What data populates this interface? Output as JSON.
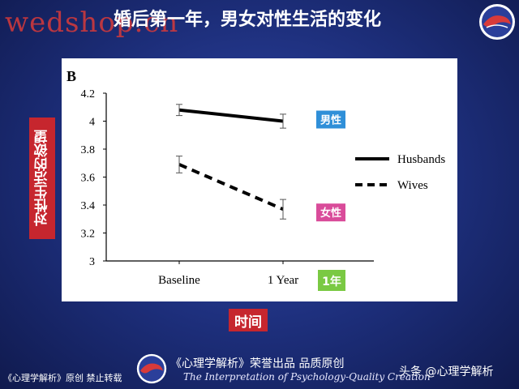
{
  "watermark": "wedshop.cn",
  "title": "婚后第一年，男女对性生活的变化",
  "y_axis_label": "对性生活的欲望",
  "x_axis_label": "时间",
  "footer": {
    "left": "《心理学解析》原创 禁止转载",
    "main": "《心理学解析》荣誉出品 品质原创",
    "sub": "The Interpretation of Psychology-Quality Creation",
    "right": "头条 @心理学解析"
  },
  "colors": {
    "background": "#1b2a6f",
    "label_red": "#c6262e",
    "male_tag": "#2f8fd8",
    "female_tag": "#d94c9a",
    "year_tag": "#7ac943"
  },
  "chart_data": {
    "type": "line",
    "panel_label": "B",
    "categories": [
      "Baseline",
      "1 Year"
    ],
    "ylim": [
      3,
      4.2
    ],
    "yticks": [
      "3",
      "3.2",
      "3.4",
      "3.6",
      "3.8",
      "4",
      "4.2"
    ],
    "grid": false,
    "legend_position": "right",
    "series": [
      {
        "name": "Husbands",
        "style": "solid",
        "values": [
          4.08,
          4.0
        ],
        "errors": [
          0.04,
          0.05
        ],
        "tag": "男性",
        "tag_color": "#2f8fd8"
      },
      {
        "name": "Wives",
        "style": "dashed",
        "values": [
          3.69,
          3.37
        ],
        "errors": [
          0.06,
          0.07
        ],
        "tag": "女性",
        "tag_color": "#d94c9a"
      }
    ],
    "annotation": {
      "text": "1年",
      "color": "#7ac943"
    }
  }
}
